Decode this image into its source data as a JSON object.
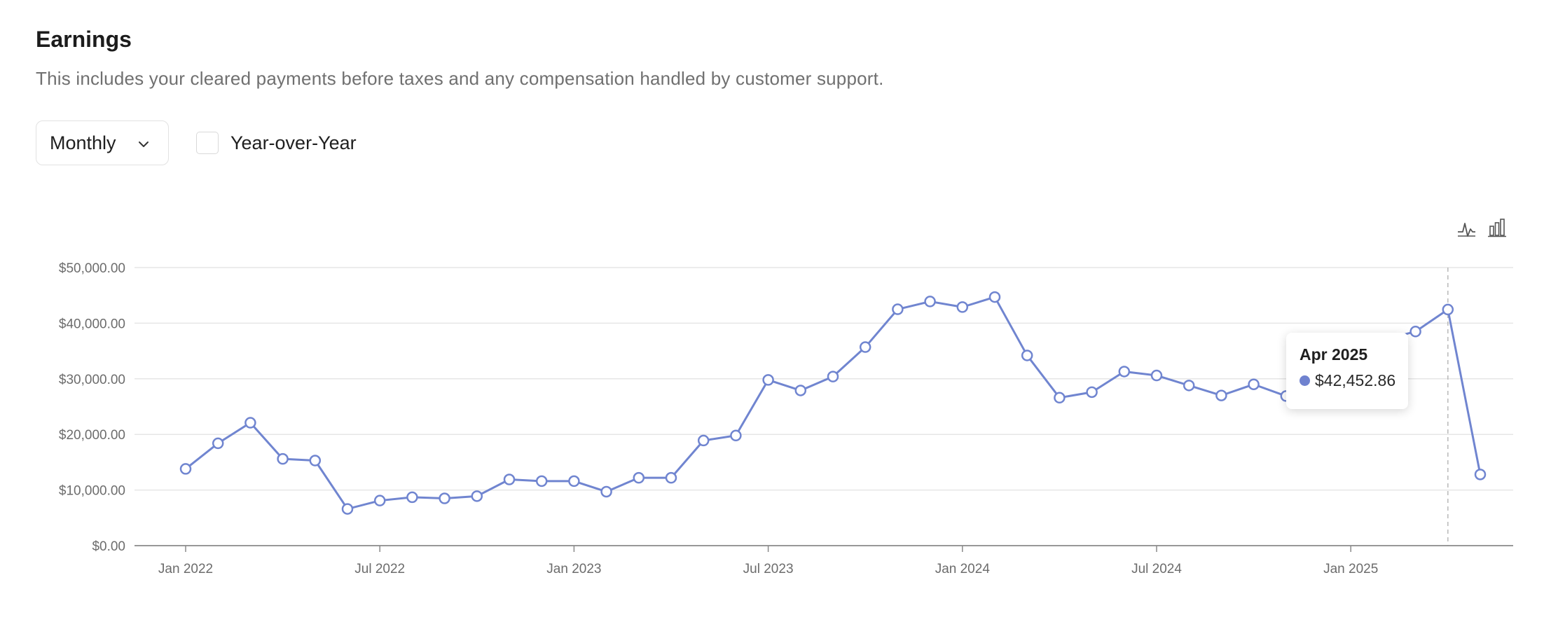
{
  "header": {
    "title": "Earnings",
    "subtitle": "This includes your cleared payments before taxes and any compensation handled by customer support."
  },
  "controls": {
    "period_select": {
      "value": "Monthly",
      "icon": "chevron-down-icon"
    },
    "yoy_checkbox": {
      "label": "Year-over-Year",
      "checked": false
    },
    "view_toggles": [
      "line-chart-icon",
      "bar-chart-icon"
    ]
  },
  "chart_data": {
    "type": "line",
    "x_label": "",
    "y_label": "",
    "x": [
      "2022-01",
      "2022-02",
      "2022-03",
      "2022-04",
      "2022-05",
      "2022-06",
      "2022-07",
      "2022-08",
      "2022-09",
      "2022-10",
      "2022-11",
      "2022-12",
      "2023-01",
      "2023-02",
      "2023-03",
      "2023-04",
      "2023-05",
      "2023-06",
      "2023-07",
      "2023-08",
      "2023-09",
      "2023-10",
      "2023-11",
      "2023-12",
      "2024-01",
      "2024-02",
      "2024-03",
      "2024-04",
      "2024-05",
      "2024-06",
      "2024-07",
      "2024-08",
      "2024-09",
      "2024-10",
      "2024-11",
      "2024-12",
      "2025-01",
      "2025-02",
      "2025-03",
      "2025-04",
      "2025-05"
    ],
    "series": [
      {
        "values": [
          13800,
          18400,
          22100,
          15600,
          15300,
          6600,
          8100,
          8700,
          8500,
          8900,
          11900,
          11600,
          11600,
          9700,
          12200,
          12200,
          18900,
          19800,
          29800,
          27900,
          30400,
          35700,
          42500,
          43900,
          42900,
          44700,
          34200,
          26600,
          27600,
          31300,
          30600,
          28800,
          27000,
          29000,
          26900,
          33800,
          35500,
          37000,
          38500,
          42452.86,
          12800
        ],
        "color": "#7085d0"
      }
    ],
    "y_ticks": [
      "$0.00",
      "$10,000.00",
      "$20,000.00",
      "$30,000.00",
      "$40,000.00",
      "$50,000.00"
    ],
    "x_ticks": [
      {
        "x": "2022-01",
        "label": "Jan 2022"
      },
      {
        "x": "2022-07",
        "label": "Jul 2022"
      },
      {
        "x": "2023-01",
        "label": "Jan 2023"
      },
      {
        "x": "2023-07",
        "label": "Jul 2023"
      },
      {
        "x": "2024-01",
        "label": "Jan 2024"
      },
      {
        "x": "2024-07",
        "label": "Jul 2024"
      },
      {
        "x": "2025-01",
        "label": "Jan 2025"
      }
    ],
    "ylim": [
      0,
      50000
    ],
    "grid": true,
    "legend": "none",
    "tooltip": {
      "x": "2025-04",
      "title": "Apr 2025",
      "value": "$42,452.86"
    }
  }
}
